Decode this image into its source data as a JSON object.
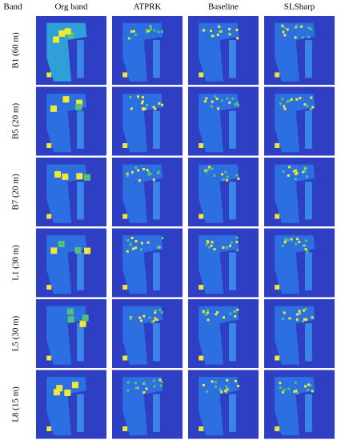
{
  "header": {
    "columns": [
      "Band",
      "Org band",
      "ATPRK",
      "Baseline",
      "SLSharp"
    ]
  },
  "rows": [
    {
      "label": "B1 (60 m)"
    },
    {
      "label": "B5 (20 m)"
    },
    {
      "label": "B7 (20 m)"
    },
    {
      "label": "L1 (30 m)"
    },
    {
      "label": "L5 (30 m)"
    },
    {
      "label": "L8 (15 m)"
    }
  ]
}
